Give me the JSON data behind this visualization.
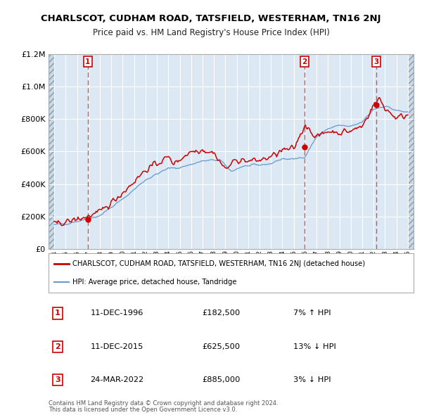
{
  "title": "CHARLSCOT, CUDHAM ROAD, TATSFIELD, WESTERHAM, TN16 2NJ",
  "subtitle": "Price paid vs. HM Land Registry's House Price Index (HPI)",
  "legend_label_red": "CHARLSCOT, CUDHAM ROAD, TATSFIELD, WESTERHAM, TN16 2NJ (detached house)",
  "legend_label_blue": "HPI: Average price, detached house, Tandridge",
  "footnote1": "Contains HM Land Registry data © Crown copyright and database right 2024.",
  "footnote2": "This data is licensed under the Open Government Licence v3.0.",
  "sales": [
    {
      "num": 1,
      "date": "11-DEC-1996",
      "price": 182500,
      "hpi_pct": "7% ↑ HPI",
      "x": 1996.94
    },
    {
      "num": 2,
      "date": "11-DEC-2015",
      "price": 625500,
      "hpi_pct": "13% ↓ HPI",
      "x": 2015.94
    },
    {
      "num": 3,
      "date": "24-MAR-2022",
      "price": 885000,
      "hpi_pct": "3% ↓ HPI",
      "x": 2022.23
    }
  ],
  "ylim": [
    0,
    1200000
  ],
  "xlim": [
    1993.5,
    2025.5
  ],
  "red_color": "#cc0000",
  "blue_color": "#6699cc",
  "bg_color": "#ffffff",
  "plot_bg": "#dce9f5",
  "grid_color": "#ffffff",
  "dashed_color": "#cc4444"
}
